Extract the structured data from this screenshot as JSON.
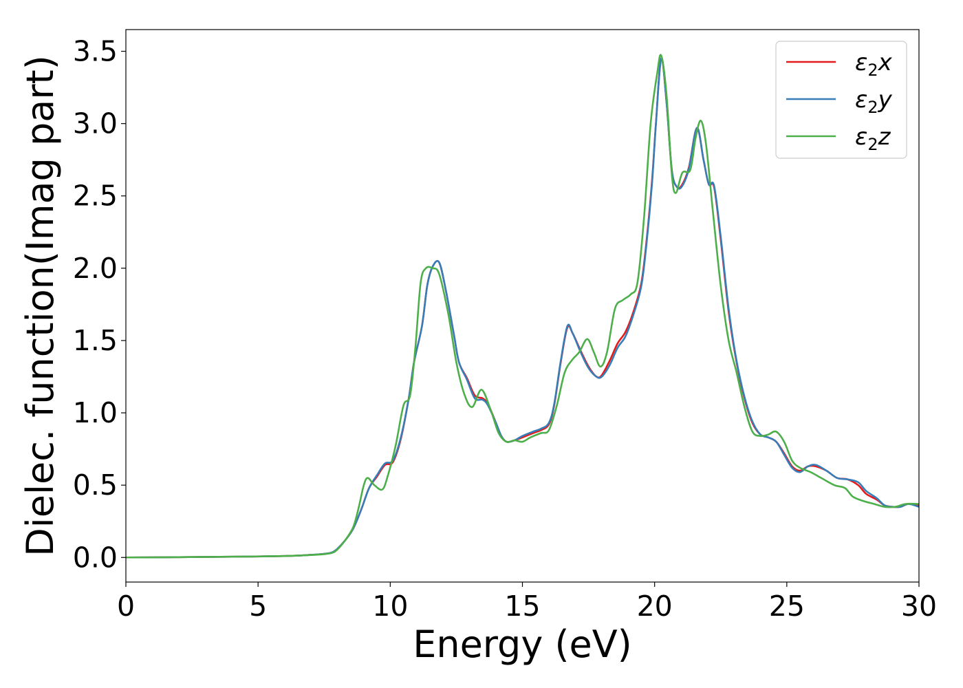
{
  "chart_data": {
    "type": "line",
    "xlabel": "Energy (eV)",
    "ylabel": "Dielec. function(Imag part)",
    "xlim": [
      0,
      30
    ],
    "ylim": [
      -0.17,
      3.65
    ],
    "xticks": [
      0,
      5,
      10,
      15,
      20,
      25,
      30
    ],
    "xtick_labels": [
      "0",
      "5",
      "10",
      "15",
      "20",
      "25",
      "30"
    ],
    "yticks": [
      0.0,
      0.5,
      1.0,
      1.5,
      2.0,
      2.5,
      3.0,
      3.5
    ],
    "ytick_labels": [
      "0.0",
      "0.5",
      "1.0",
      "1.5",
      "2.0",
      "2.5",
      "3.0",
      "3.5"
    ],
    "grid": false,
    "legend_position": "top-right",
    "series": [
      {
        "name": "ε2x",
        "legend": {
          "symbol": "ε",
          "sub": "2",
          "suffix": "x"
        },
        "color": "#e41a1c",
        "points": [
          [
            0,
            0.0
          ],
          [
            2,
            0.002
          ],
          [
            4,
            0.005
          ],
          [
            6,
            0.01
          ],
          [
            7,
            0.018
          ],
          [
            7.5,
            0.025
          ],
          [
            7.8,
            0.035
          ],
          [
            8.0,
            0.06
          ],
          [
            8.3,
            0.12
          ],
          [
            8.6,
            0.2
          ],
          [
            8.9,
            0.33
          ],
          [
            9.2,
            0.48
          ],
          [
            9.5,
            0.56
          ],
          [
            9.8,
            0.64
          ],
          [
            10.1,
            0.66
          ],
          [
            10.4,
            0.82
          ],
          [
            10.7,
            1.1
          ],
          [
            10.9,
            1.35
          ],
          [
            11.2,
            1.6
          ],
          [
            11.4,
            1.88
          ],
          [
            11.6,
            2.01
          ],
          [
            11.85,
            2.04
          ],
          [
            12.1,
            1.85
          ],
          [
            12.4,
            1.55
          ],
          [
            12.6,
            1.35
          ],
          [
            12.9,
            1.24
          ],
          [
            13.2,
            1.12
          ],
          [
            13.5,
            1.1
          ],
          [
            13.7,
            1.06
          ],
          [
            14.0,
            0.93
          ],
          [
            14.2,
            0.84
          ],
          [
            14.4,
            0.8
          ],
          [
            14.7,
            0.81
          ],
          [
            15.0,
            0.83
          ],
          [
            15.4,
            0.86
          ],
          [
            15.7,
            0.88
          ],
          [
            16.0,
            0.92
          ],
          [
            16.2,
            1.05
          ],
          [
            16.45,
            1.35
          ],
          [
            16.7,
            1.59
          ],
          [
            16.9,
            1.55
          ],
          [
            17.2,
            1.43
          ],
          [
            17.5,
            1.32
          ],
          [
            17.8,
            1.25
          ],
          [
            18.0,
            1.26
          ],
          [
            18.3,
            1.36
          ],
          [
            18.6,
            1.48
          ],
          [
            18.9,
            1.56
          ],
          [
            19.2,
            1.7
          ],
          [
            19.5,
            1.9
          ],
          [
            19.7,
            2.2
          ],
          [
            19.9,
            2.6
          ],
          [
            20.05,
            3.0
          ],
          [
            20.25,
            3.45
          ],
          [
            20.45,
            3.15
          ],
          [
            20.65,
            2.68
          ],
          [
            20.85,
            2.56
          ],
          [
            21.05,
            2.58
          ],
          [
            21.3,
            2.7
          ],
          [
            21.6,
            2.97
          ],
          [
            21.85,
            2.75
          ],
          [
            22.05,
            2.58
          ],
          [
            22.25,
            2.56
          ],
          [
            22.5,
            2.2
          ],
          [
            22.8,
            1.7
          ],
          [
            23.1,
            1.35
          ],
          [
            23.4,
            1.1
          ],
          [
            23.7,
            0.93
          ],
          [
            24.0,
            0.85
          ],
          [
            24.3,
            0.83
          ],
          [
            24.6,
            0.8
          ],
          [
            24.9,
            0.72
          ],
          [
            25.2,
            0.63
          ],
          [
            25.5,
            0.6
          ],
          [
            25.8,
            0.63
          ],
          [
            26.1,
            0.63
          ],
          [
            26.5,
            0.6
          ],
          [
            26.9,
            0.55
          ],
          [
            27.3,
            0.54
          ],
          [
            27.7,
            0.5
          ],
          [
            28.0,
            0.44
          ],
          [
            28.4,
            0.4
          ],
          [
            28.7,
            0.36
          ],
          [
            29.0,
            0.35
          ],
          [
            29.3,
            0.35
          ],
          [
            29.6,
            0.37
          ],
          [
            30.0,
            0.36
          ]
        ]
      },
      {
        "name": "ε2y",
        "legend": {
          "symbol": "ε",
          "sub": "2",
          "suffix": "y"
        },
        "color": "#377eb8",
        "points": [
          [
            0,
            0.0
          ],
          [
            2,
            0.002
          ],
          [
            4,
            0.005
          ],
          [
            6,
            0.01
          ],
          [
            7,
            0.018
          ],
          [
            7.5,
            0.025
          ],
          [
            7.8,
            0.035
          ],
          [
            8.0,
            0.06
          ],
          [
            8.3,
            0.12
          ],
          [
            8.6,
            0.2
          ],
          [
            8.9,
            0.33
          ],
          [
            9.2,
            0.48
          ],
          [
            9.5,
            0.57
          ],
          [
            9.8,
            0.65
          ],
          [
            10.1,
            0.67
          ],
          [
            10.4,
            0.83
          ],
          [
            10.7,
            1.1
          ],
          [
            10.9,
            1.35
          ],
          [
            11.2,
            1.6
          ],
          [
            11.4,
            1.88
          ],
          [
            11.6,
            2.01
          ],
          [
            11.85,
            2.04
          ],
          [
            12.1,
            1.85
          ],
          [
            12.4,
            1.55
          ],
          [
            12.6,
            1.35
          ],
          [
            12.9,
            1.23
          ],
          [
            13.2,
            1.1
          ],
          [
            13.5,
            1.09
          ],
          [
            13.7,
            1.05
          ],
          [
            14.0,
            0.93
          ],
          [
            14.2,
            0.84
          ],
          [
            14.4,
            0.8
          ],
          [
            14.7,
            0.81
          ],
          [
            15.0,
            0.84
          ],
          [
            15.4,
            0.87
          ],
          [
            15.7,
            0.89
          ],
          [
            16.0,
            0.93
          ],
          [
            16.2,
            1.06
          ],
          [
            16.45,
            1.36
          ],
          [
            16.7,
            1.6
          ],
          [
            16.9,
            1.55
          ],
          [
            17.2,
            1.42
          ],
          [
            17.5,
            1.31
          ],
          [
            17.8,
            1.25
          ],
          [
            18.0,
            1.25
          ],
          [
            18.3,
            1.33
          ],
          [
            18.6,
            1.45
          ],
          [
            18.9,
            1.53
          ],
          [
            19.2,
            1.68
          ],
          [
            19.5,
            1.88
          ],
          [
            19.7,
            2.18
          ],
          [
            19.9,
            2.58
          ],
          [
            20.05,
            3.0
          ],
          [
            20.25,
            3.45
          ],
          [
            20.45,
            3.15
          ],
          [
            20.65,
            2.68
          ],
          [
            20.85,
            2.56
          ],
          [
            21.05,
            2.57
          ],
          [
            21.3,
            2.69
          ],
          [
            21.6,
            2.97
          ],
          [
            21.85,
            2.75
          ],
          [
            22.05,
            2.58
          ],
          [
            22.25,
            2.57
          ],
          [
            22.5,
            2.22
          ],
          [
            22.8,
            1.72
          ],
          [
            23.1,
            1.36
          ],
          [
            23.4,
            1.11
          ],
          [
            23.7,
            0.94
          ],
          [
            24.0,
            0.85
          ],
          [
            24.3,
            0.83
          ],
          [
            24.6,
            0.8
          ],
          [
            24.9,
            0.71
          ],
          [
            25.2,
            0.62
          ],
          [
            25.5,
            0.59
          ],
          [
            25.8,
            0.63
          ],
          [
            26.1,
            0.64
          ],
          [
            26.5,
            0.6
          ],
          [
            26.9,
            0.55
          ],
          [
            27.3,
            0.54
          ],
          [
            27.7,
            0.52
          ],
          [
            28.0,
            0.46
          ],
          [
            28.4,
            0.41
          ],
          [
            28.7,
            0.36
          ],
          [
            29.0,
            0.35
          ],
          [
            29.3,
            0.35
          ],
          [
            29.6,
            0.37
          ],
          [
            30.0,
            0.35
          ]
        ]
      },
      {
        "name": "ε2z",
        "legend": {
          "symbol": "ε",
          "sub": "2",
          "suffix": "z"
        },
        "color": "#4daf4a",
        "points": [
          [
            0,
            0.0
          ],
          [
            2,
            0.002
          ],
          [
            4,
            0.005
          ],
          [
            6,
            0.01
          ],
          [
            7,
            0.017
          ],
          [
            7.5,
            0.023
          ],
          [
            7.8,
            0.032
          ],
          [
            8.0,
            0.055
          ],
          [
            8.3,
            0.12
          ],
          [
            8.6,
            0.21
          ],
          [
            8.8,
            0.34
          ],
          [
            9.0,
            0.5
          ],
          [
            9.15,
            0.55
          ],
          [
            9.4,
            0.5
          ],
          [
            9.7,
            0.47
          ],
          [
            9.9,
            0.56
          ],
          [
            10.2,
            0.77
          ],
          [
            10.5,
            1.05
          ],
          [
            10.75,
            1.12
          ],
          [
            10.95,
            1.45
          ],
          [
            11.15,
            1.9
          ],
          [
            11.35,
            2.0
          ],
          [
            11.6,
            2.0
          ],
          [
            11.85,
            1.96
          ],
          [
            12.2,
            1.68
          ],
          [
            12.5,
            1.35
          ],
          [
            12.8,
            1.13
          ],
          [
            13.1,
            1.04
          ],
          [
            13.45,
            1.16
          ],
          [
            13.8,
            1.02
          ],
          [
            14.1,
            0.86
          ],
          [
            14.4,
            0.8
          ],
          [
            14.7,
            0.81
          ],
          [
            15.0,
            0.8
          ],
          [
            15.3,
            0.83
          ],
          [
            15.7,
            0.86
          ],
          [
            16.0,
            0.88
          ],
          [
            16.3,
            1.05
          ],
          [
            16.6,
            1.28
          ],
          [
            16.9,
            1.37
          ],
          [
            17.15,
            1.42
          ],
          [
            17.45,
            1.51
          ],
          [
            17.7,
            1.42
          ],
          [
            17.95,
            1.32
          ],
          [
            18.2,
            1.42
          ],
          [
            18.5,
            1.72
          ],
          [
            18.8,
            1.78
          ],
          [
            19.1,
            1.82
          ],
          [
            19.35,
            1.9
          ],
          [
            19.6,
            2.35
          ],
          [
            19.85,
            3.0
          ],
          [
            20.1,
            3.35
          ],
          [
            20.25,
            3.47
          ],
          [
            20.45,
            3.2
          ],
          [
            20.65,
            2.65
          ],
          [
            20.8,
            2.52
          ],
          [
            21.05,
            2.66
          ],
          [
            21.35,
            2.68
          ],
          [
            21.55,
            2.9
          ],
          [
            21.75,
            3.02
          ],
          [
            21.95,
            2.85
          ],
          [
            22.2,
            2.4
          ],
          [
            22.5,
            1.88
          ],
          [
            22.8,
            1.5
          ],
          [
            23.1,
            1.28
          ],
          [
            23.4,
            1.04
          ],
          [
            23.7,
            0.87
          ],
          [
            24.0,
            0.84
          ],
          [
            24.3,
            0.85
          ],
          [
            24.6,
            0.87
          ],
          [
            24.9,
            0.8
          ],
          [
            25.2,
            0.67
          ],
          [
            25.5,
            0.62
          ],
          [
            25.9,
            0.59
          ],
          [
            26.3,
            0.55
          ],
          [
            26.8,
            0.5
          ],
          [
            27.2,
            0.48
          ],
          [
            27.5,
            0.42
          ],
          [
            27.9,
            0.39
          ],
          [
            28.3,
            0.37
          ],
          [
            28.7,
            0.35
          ],
          [
            29.1,
            0.35
          ],
          [
            29.5,
            0.37
          ],
          [
            30.0,
            0.37
          ]
        ]
      }
    ]
  }
}
